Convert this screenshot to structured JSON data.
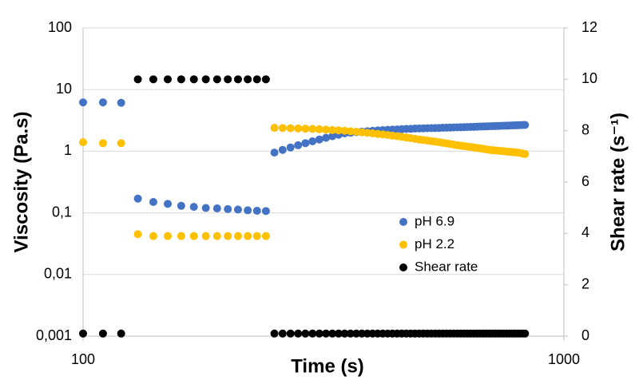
{
  "chart_data": {
    "type": "scatter",
    "xlabel": "Time (s)",
    "ylabel": "Viscosity (Pa.s)",
    "y2label": "Shear rate (s⁻¹)",
    "xscale": "log",
    "yscale": "log",
    "grid": true,
    "legend": "center right",
    "xlim": [
      100,
      1000
    ],
    "xticks": [
      100,
      1000
    ],
    "ylim": [
      0.001,
      100
    ],
    "yticks": [
      {
        "value": 0.001,
        "label": "0,001"
      },
      {
        "value": 0.01,
        "label": "0,01"
      },
      {
        "value": 0.1,
        "label": "0,1"
      },
      1,
      10,
      100
    ],
    "y2lim": [
      0,
      12
    ],
    "y2ticks": [
      0,
      2,
      4,
      6,
      8,
      10,
      12
    ],
    "x": [
      100,
      110,
      120,
      130,
      140,
      150,
      160,
      170,
      180,
      190,
      200,
      210,
      220,
      230,
      240,
      250,
      260,
      270,
      280,
      290,
      300,
      310,
      320,
      330,
      340,
      350,
      360,
      370,
      380,
      390,
      400,
      410,
      420,
      430,
      440,
      450,
      460,
      470,
      480,
      490,
      500,
      510,
      520,
      530,
      540,
      550,
      560,
      570,
      580,
      590,
      600,
      610,
      620,
      630,
      640,
      650,
      660,
      670,
      680,
      690,
      700,
      710,
      720,
      730,
      740,
      750,
      760,
      770,
      780,
      790,
      800,
      810,
      820,
      830
    ],
    "series": [
      {
        "name": "pH 6.9",
        "color": "#4472c4",
        "values": [
          6.2,
          6.2,
          6.1,
          0.17,
          0.15,
          0.14,
          0.13,
          0.125,
          0.12,
          0.118,
          0.115,
          0.113,
          0.11,
          0.108,
          0.107,
          0.95,
          1.05,
          1.15,
          1.25,
          1.35,
          1.45,
          1.55,
          1.65,
          1.75,
          1.85,
          1.95,
          2.0,
          2.04,
          2.08,
          2.11,
          2.14,
          2.17,
          2.2,
          2.22,
          2.24,
          2.26,
          2.28,
          2.3,
          2.31,
          2.33,
          2.34,
          2.35,
          2.36,
          2.37,
          2.38,
          2.39,
          2.4,
          2.41,
          2.42,
          2.43,
          2.44,
          2.45,
          2.46,
          2.47,
          2.48,
          2.49,
          2.5,
          2.51,
          2.52,
          2.53,
          2.54,
          2.55,
          2.56,
          2.57,
          2.58,
          2.59,
          2.6,
          2.61,
          2.62,
          2.63,
          2.64,
          2.65,
          2.66,
          2.67
        ]
      },
      {
        "name": "pH 2.2",
        "color": "#ffc000",
        "values": [
          1.4,
          1.35,
          1.35,
          0.045,
          0.042,
          0.042,
          0.042,
          0.042,
          0.042,
          0.042,
          0.042,
          0.042,
          0.042,
          0.042,
          0.042,
          2.4,
          2.38,
          2.36,
          2.34,
          2.32,
          2.3,
          2.27,
          2.24,
          2.21,
          2.18,
          2.15,
          2.11,
          2.07,
          2.03,
          1.99,
          1.95,
          1.91,
          1.87,
          1.83,
          1.79,
          1.75,
          1.71,
          1.67,
          1.63,
          1.59,
          1.55,
          1.52,
          1.49,
          1.46,
          1.43,
          1.4,
          1.37,
          1.34,
          1.31,
          1.28,
          1.25,
          1.23,
          1.21,
          1.19,
          1.17,
          1.15,
          1.13,
          1.11,
          1.09,
          1.07,
          1.05,
          1.04,
          1.03,
          1.02,
          1.01,
          1.0,
          0.99,
          0.98,
          0.97,
          0.96,
          0.95,
          0.94,
          0.92,
          0.9
        ]
      },
      {
        "name": "Shear rate",
        "color": "#000000",
        "axis": "y2",
        "values": [
          0.1,
          0.1,
          0.1,
          10,
          10,
          10,
          10,
          10,
          10,
          10,
          10,
          10,
          10,
          10,
          10,
          0.1,
          0.1,
          0.1,
          0.1,
          0.1,
          0.1,
          0.1,
          0.1,
          0.1,
          0.1,
          0.1,
          0.1,
          0.1,
          0.1,
          0.1,
          0.1,
          0.1,
          0.1,
          0.1,
          0.1,
          0.1,
          0.1,
          0.1,
          0.1,
          0.1,
          0.1,
          0.1,
          0.1,
          0.1,
          0.1,
          0.1,
          0.1,
          0.1,
          0.1,
          0.1,
          0.1,
          0.1,
          0.1,
          0.1,
          0.1,
          0.1,
          0.1,
          0.1,
          0.1,
          0.1,
          0.1,
          0.1,
          0.1,
          0.1,
          0.1,
          0.1,
          0.1,
          0.1,
          0.1,
          0.1,
          0.1,
          0.1,
          0.1,
          0.1
        ]
      }
    ]
  }
}
